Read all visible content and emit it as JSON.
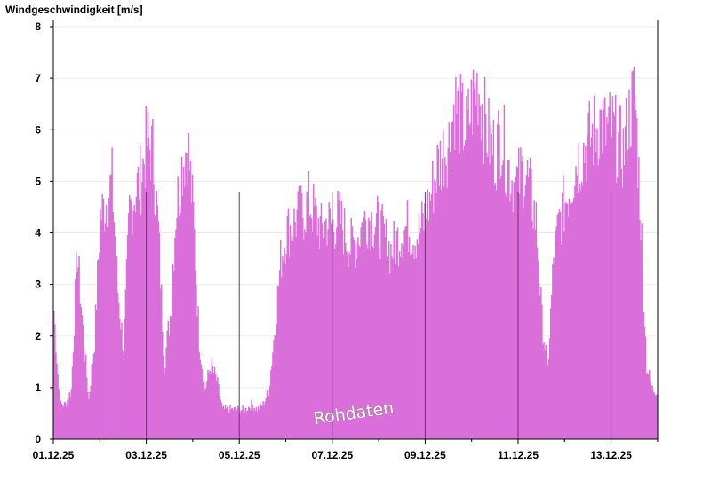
{
  "chart_data": {
    "type": "bar",
    "ylabel": "Windgeschwindigkeit [m/s]",
    "watermark": "Rohdaten",
    "xlim": [
      "01.12.25",
      "14.12.25"
    ],
    "ylim": [
      0,
      8
    ],
    "yticks": [
      0,
      1,
      2,
      3,
      4,
      5,
      6,
      7,
      8
    ],
    "xtick_labels": [
      "01.12.25",
      "03.12.25",
      "05.12.25",
      "07.12.25",
      "09.12.25",
      "11.12.25",
      "13.12.25"
    ],
    "grid": true,
    "bar_color": "#da6fda",
    "day_divider_color": "#7a2a7a",
    "series": [
      {
        "x": [
          "01.12.25 00h",
          "01.12.25 03h",
          "01.12.25 06h",
          "01.12.25 09h",
          "01.12.25 12h",
          "01.12.25 15h",
          "01.12.25 18h",
          "01.12.25 21h",
          "02.12.25 00h",
          "02.12.25 03h",
          "02.12.25 06h",
          "02.12.25 09h",
          "02.12.25 12h",
          "02.12.25 15h",
          "02.12.25 18h",
          "02.12.25 21h",
          "03.12.25 00h",
          "03.12.25 03h",
          "03.12.25 06h",
          "03.12.25 09h",
          "03.12.25 12h",
          "03.12.25 15h",
          "03.12.25 18h",
          "03.12.25 21h",
          "04.12.25 00h",
          "04.12.25 03h",
          "04.12.25 06h",
          "04.12.25 09h",
          "04.12.25 12h",
          "04.12.25 15h",
          "04.12.25 18h",
          "04.12.25 21h",
          "05.12.25 00h",
          "05.12.25 03h",
          "05.12.25 06h",
          "05.12.25 09h",
          "05.12.25 12h",
          "05.12.25 15h",
          "05.12.25 18h",
          "05.12.25 21h",
          "06.12.25 00h",
          "06.12.25 03h",
          "06.12.25 06h",
          "06.12.25 09h",
          "06.12.25 12h",
          "06.12.25 15h",
          "06.12.25 18h",
          "06.12.25 21h",
          "07.12.25 00h",
          "07.12.25 03h",
          "07.12.25 06h",
          "07.12.25 09h",
          "07.12.25 12h",
          "07.12.25 15h",
          "07.12.25 18h",
          "07.12.25 21h",
          "08.12.25 00h",
          "08.12.25 03h",
          "08.12.25 06h",
          "08.12.25 09h",
          "08.12.25 12h",
          "08.12.25 15h",
          "08.12.25 18h",
          "08.12.25 21h",
          "09.12.25 00h",
          "09.12.25 03h",
          "09.12.25 06h",
          "09.12.25 09h",
          "09.12.25 12h",
          "09.12.25 15h",
          "09.12.25 18h",
          "09.12.25 21h",
          "10.12.25 00h",
          "10.12.25 03h",
          "10.12.25 06h",
          "10.12.25 09h",
          "10.12.25 12h",
          "10.12.25 15h",
          "10.12.25 18h",
          "10.12.25 21h",
          "11.12.25 00h",
          "11.12.25 03h",
          "11.12.25 06h",
          "11.12.25 09h",
          "11.12.25 12h",
          "11.12.25 15h",
          "11.12.25 18h",
          "11.12.25 21h",
          "12.12.25 00h",
          "12.12.25 03h",
          "12.12.25 06h",
          "12.12.25 09h",
          "12.12.25 12h",
          "12.12.25 15h",
          "12.12.25 18h",
          "12.12.25 21h",
          "13.12.25 00h",
          "13.12.25 03h",
          "13.12.25 06h",
          "13.12.25 09h",
          "13.12.25 12h",
          "13.12.25 15h",
          "13.12.25 18h",
          "13.12.25 21h"
        ],
        "values": [
          2.6,
          0.7,
          0.7,
          1.0,
          3.8,
          2.2,
          0.8,
          2.0,
          4.5,
          4.8,
          5.2,
          3.0,
          1.8,
          4.6,
          5.0,
          5.3,
          6.0,
          5.8,
          4.2,
          1.5,
          2.5,
          4.6,
          5.5,
          6.0,
          4.5,
          2.0,
          1.0,
          1.5,
          1.2,
          0.6,
          0.6,
          0.6,
          0.6,
          0.6,
          0.7,
          0.6,
          0.7,
          1.0,
          2.2,
          3.6,
          4.2,
          4.3,
          4.5,
          4.6,
          4.8,
          4.5,
          4.2,
          4.4,
          4.3,
          4.5,
          4.2,
          3.9,
          4.0,
          4.3,
          4.5,
          4.4,
          4.3,
          4.0,
          3.8,
          4.0,
          4.2,
          4.3,
          4.1,
          4.2,
          4.5,
          5.0,
          5.5,
          5.8,
          6.0,
          6.8,
          6.5,
          6.2,
          6.8,
          7.2,
          6.5,
          6.0,
          5.8,
          6.2,
          5.6,
          5.2,
          5.2,
          5.5,
          5.0,
          4.4,
          2.4,
          1.4,
          3.6,
          4.4,
          4.8,
          5.2,
          5.6,
          5.8,
          6.0,
          6.2,
          6.4,
          6.2,
          6.3,
          6.0,
          5.8,
          6.5,
          7.0,
          4.5,
          1.5,
          1.0
        ]
      }
    ]
  }
}
